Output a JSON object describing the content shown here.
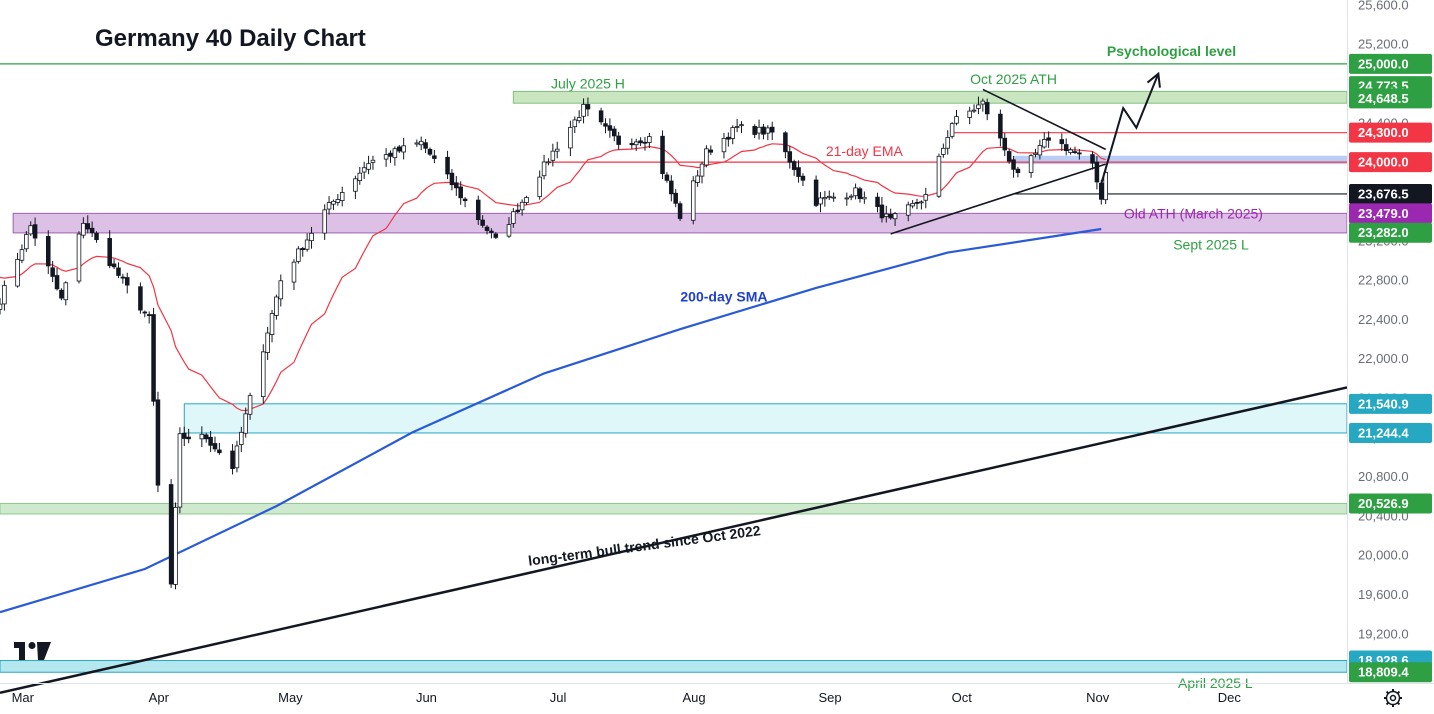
{
  "chart_data": {
    "type": "candlestick",
    "title": "Germany 40 Daily Chart",
    "ylim": [
      18700,
      25650
    ],
    "y_ticks": [
      "25,600.0",
      "25,200.0",
      "24,800.0",
      "24,400.0",
      "24,000.0",
      "23,600.0",
      "23,200.0",
      "22,800.0",
      "22,400.0",
      "22,000.0",
      "21,600.0",
      "21,200.0",
      "20,800.0",
      "20,400.0",
      "20,000.0",
      "19,600.0",
      "19,200.0",
      "18,800.0"
    ],
    "y_tick_values": [
      25600,
      25200,
      24800,
      24400,
      24000,
      23600,
      23200,
      22800,
      22400,
      22000,
      21600,
      21200,
      20800,
      20400,
      20000,
      19600,
      19200,
      18800
    ],
    "x_ticks": [
      "Mar",
      "Apr",
      "May",
      "Jun",
      "Jul",
      "Aug",
      "Sep",
      "Oct",
      "Nov",
      "Dec"
    ],
    "x_tick_dates": [
      "2025-03-01",
      "2025-04-01",
      "2025-05-01",
      "2025-06-01",
      "2025-07-01",
      "2025-08-01",
      "2025-09-01",
      "2025-10-01",
      "2025-11-01",
      "2025-12-01"
    ],
    "x_range": [
      "2025-02-27",
      "2025-12-31"
    ],
    "anchors": [
      {
        "date": "2025-02-27",
        "close": 22600
      },
      {
        "date": "2025-03-06",
        "close": 23350
      },
      {
        "date": "2025-03-13",
        "close": 22600
      },
      {
        "date": "2025-03-18",
        "close": 23400
      },
      {
        "date": "2025-03-26",
        "close": 22850
      },
      {
        "date": "2025-04-02",
        "close": 22400
      },
      {
        "date": "2025-04-04",
        "close": 20700
      },
      {
        "date": "2025-04-07",
        "close": 19700
      },
      {
        "date": "2025-04-09",
        "close": 21200
      },
      {
        "date": "2025-04-15",
        "close": 21200
      },
      {
        "date": "2025-04-21",
        "close": 20900
      },
      {
        "date": "2025-05-02",
        "close": 22800
      },
      {
        "date": "2025-05-12",
        "close": 23500
      },
      {
        "date": "2025-05-22",
        "close": 24000
      },
      {
        "date": "2025-06-03",
        "close": 24200
      },
      {
        "date": "2025-06-13",
        "close": 23600
      },
      {
        "date": "2025-06-20",
        "close": 23200
      },
      {
        "date": "2025-06-26",
        "close": 23600
      },
      {
        "date": "2025-07-03",
        "close": 24100
      },
      {
        "date": "2025-07-10",
        "close": 24550
      },
      {
        "date": "2025-07-18",
        "close": 24200
      },
      {
        "date": "2025-07-25",
        "close": 24250
      },
      {
        "date": "2025-08-01",
        "close": 23450
      },
      {
        "date": "2025-08-07",
        "close": 24100
      },
      {
        "date": "2025-08-14",
        "close": 24350
      },
      {
        "date": "2025-08-22",
        "close": 24300
      },
      {
        "date": "2025-09-01",
        "close": 23600
      },
      {
        "date": "2025-09-10",
        "close": 23700
      },
      {
        "date": "2025-09-18",
        "close": 23400
      },
      {
        "date": "2025-09-26",
        "close": 23650
      },
      {
        "date": "2025-10-02",
        "close": 24400
      },
      {
        "date": "2025-10-09",
        "close": 24600
      },
      {
        "date": "2025-10-17",
        "close": 23850
      },
      {
        "date": "2025-10-24",
        "close": 24250
      },
      {
        "date": "2025-10-30",
        "close": 24100
      },
      {
        "date": "2025-11-03",
        "close": 23950
      },
      {
        "date": "2025-11-05",
        "close": 23650
      },
      {
        "date": "2025-11-06",
        "close": 23900
      }
    ],
    "series": [
      {
        "name": "21-day EMA",
        "color": "#f23645",
        "period": 21,
        "kind": "ema"
      },
      {
        "name": "200-day SMA",
        "color": "#2a5bd7",
        "kind": "sma",
        "points": [
          {
            "date": "2025-02-27",
            "value": 19420
          },
          {
            "date": "2025-04-01",
            "value": 19860
          },
          {
            "date": "2025-05-01",
            "value": 20500
          },
          {
            "date": "2025-06-01",
            "value": 21250
          },
          {
            "date": "2025-07-01",
            "value": 21850
          },
          {
            "date": "2025-08-01",
            "value": 22300
          },
          {
            "date": "2025-09-01",
            "value": 22720
          },
          {
            "date": "2025-10-01",
            "value": 23080
          },
          {
            "date": "2025-11-05",
            "value": 23320
          }
        ]
      }
    ],
    "zones": [
      {
        "name": "psychological-level-line",
        "kind": "line",
        "value": 25000,
        "start": "2025-02-27",
        "color": "#2ea043"
      },
      {
        "name": "july-2025-high-zone",
        "kind": "band",
        "from": 24600,
        "to": 24720,
        "start": "2025-06-24",
        "color": "#c9e6c0",
        "stroke": "#7fbf7f"
      },
      {
        "name": "old-ath-zone",
        "kind": "band",
        "from": 23280,
        "to": 23479,
        "start": "2025-03-02",
        "color": "#dcc0e6",
        "stroke": "#a060b0"
      },
      {
        "name": "support-21540-zone",
        "kind": "band",
        "from": 21244.4,
        "to": 21540.9,
        "start": "2025-04-10",
        "color": "#e0f7fa",
        "stroke": "#26a7c2"
      },
      {
        "name": "support-20526-zone",
        "kind": "band",
        "from": 20420,
        "to": 20526.9,
        "start": "2025-02-27",
        "color": "#cfe9cf",
        "stroke": "#8fc98f"
      },
      {
        "name": "april-2025-low-zone",
        "kind": "band",
        "from": 18809.4,
        "to": 18928.6,
        "start": "2025-02-27",
        "color": "#b5e7ee",
        "stroke": "#26a7c2"
      },
      {
        "name": "blue-zone-24000",
        "kind": "band",
        "from": 23985,
        "to": 24060,
        "start": "2025-10-16",
        "color": "#b9cdf5",
        "stroke": "#b9cdf5"
      },
      {
        "name": "resistance-24000-line",
        "kind": "line",
        "value": 24000,
        "start": "2025-07-01",
        "color": "#f23645"
      },
      {
        "name": "resistance-24300-line",
        "kind": "line",
        "value": 24300,
        "start": "2025-10-02",
        "color": "#f23645"
      },
      {
        "name": "support-23676-line",
        "kind": "line",
        "value": 23676.5,
        "start": "2025-10-16",
        "color": "#131722"
      }
    ],
    "trendlines": [
      {
        "name": "triangle-upper-line",
        "from": {
          "date": "2025-10-09",
          "value": 24740
        },
        "to": {
          "date": "2025-11-06",
          "value": 24130
        }
      },
      {
        "name": "triangle-lower-line",
        "from": {
          "date": "2025-09-18",
          "value": 23270
        },
        "to": {
          "date": "2025-11-06",
          "value": 23980
        }
      },
      {
        "name": "long-term-bull-trend-line",
        "from": {
          "date": "2025-02-27",
          "value": 18600
        },
        "to": {
          "date": "2025-11-01",
          "value": 21100
        },
        "to_pixel_note": "extends to right edge"
      }
    ],
    "projection": [
      {
        "date": "2025-11-05",
        "value": 23780
      },
      {
        "date": "2025-11-10",
        "value": 24550
      },
      {
        "date": "2025-11-13",
        "value": 24350
      },
      {
        "date": "2025-11-18",
        "value": 24900
      }
    ],
    "price_labels": [
      {
        "text": "25,000.0",
        "value": 25000,
        "bg": "#2ea043",
        "fg": "#ffffff"
      },
      {
        "text": "24,773.5",
        "value": 24773.5,
        "bg": "#2ea043",
        "fg": "#ffffff"
      },
      {
        "text": "24,648.5",
        "value": 24648.5,
        "bg": "#2ea043",
        "fg": "#ffffff"
      },
      {
        "text": "24,300.0",
        "value": 24300,
        "bg": "#f23645",
        "fg": "#ffffff"
      },
      {
        "text": "24,000.0",
        "value": 24000,
        "bg": "#f23645",
        "fg": "#ffffff"
      },
      {
        "text": "23,676.5",
        "value": 23676.5,
        "bg": "#131722",
        "fg": "#ffffff"
      },
      {
        "text": "23,479.0",
        "value": 23479,
        "bg": "#9c27b0",
        "fg": "#ffffff"
      },
      {
        "text": "23,282.0",
        "value": 23282,
        "bg": "#2ea043",
        "fg": "#ffffff"
      },
      {
        "text": "21,540.9",
        "value": 21540.9,
        "bg": "#26a7c2",
        "fg": "#ffffff"
      },
      {
        "text": "21,244.4",
        "value": 21244.4,
        "bg": "#26a7c2",
        "fg": "#ffffff"
      },
      {
        "text": "20,526.9",
        "value": 20526.9,
        "bg": "#2ea043",
        "fg": "#ffffff"
      },
      {
        "text": "18,928.6",
        "value": 18928.6,
        "bg": "#26a7c2",
        "fg": "#ffffff"
      },
      {
        "text": "18,809.4",
        "value": 18809.4,
        "bg": "#2ea043",
        "fg": "#ffffff"
      }
    ],
    "annotations": [
      {
        "name": "psychological-level-label",
        "text": "Psychological level",
        "color": "#2ea043",
        "bold": true
      },
      {
        "name": "oct-2025-ath-label",
        "text": "Oct 2025 ATH",
        "color": "#2ea043"
      },
      {
        "name": "july-2025-high-label",
        "text": "July 2025 H",
        "color": "#2ea043"
      },
      {
        "name": "ema-label",
        "text": "21-day EMA",
        "color": "#f23645"
      },
      {
        "name": "old-ath-label",
        "text": "Old ATH (March 2025)",
        "color": "#9c27b0"
      },
      {
        "name": "sept-2025-low-label",
        "text": "Sept 2025 L",
        "color": "#2ea043"
      },
      {
        "name": "sma-label",
        "text": "200-day SMA",
        "color": "#1f3fd1",
        "bold": true
      },
      {
        "name": "bull-trend-label",
        "text": "long-term bull trend since Oct 2022",
        "color": "#131722",
        "bold": true
      },
      {
        "name": "april-2025-low-label",
        "text": "April 2025 L",
        "color": "#2ea043"
      }
    ],
    "grid": false,
    "legend": "none"
  },
  "colors": {
    "up_candle": "#ffffff",
    "down_candle": "#131722",
    "wick": "#131722",
    "axis_text": "#6a6d78",
    "border": "#e0e3eb"
  },
  "icons": {
    "logo": "tradingview-logo-icon",
    "settings": "settings-gear-icon"
  }
}
